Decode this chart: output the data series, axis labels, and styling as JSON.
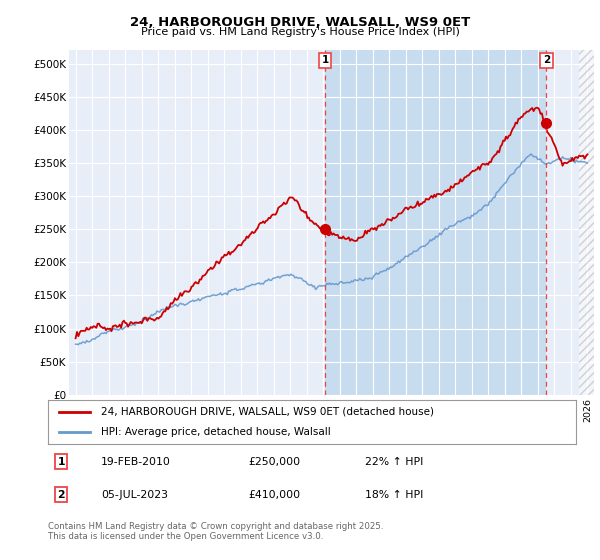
{
  "title": "24, HARBOROUGH DRIVE, WALSALL, WS9 0ET",
  "subtitle": "Price paid vs. HM Land Registry's House Price Index (HPI)",
  "legend_line1": "24, HARBOROUGH DRIVE, WALSALL, WS9 0ET (detached house)",
  "legend_line2": "HPI: Average price, detached house, Walsall",
  "footer": "Contains HM Land Registry data © Crown copyright and database right 2025.\nThis data is licensed under the Open Government Licence v3.0.",
  "annotation1": {
    "label": "1",
    "date": "19-FEB-2010",
    "price": "£250,000",
    "hpi": "22% ↑ HPI"
  },
  "annotation2": {
    "label": "2",
    "date": "05-JUL-2023",
    "price": "£410,000",
    "hpi": "18% ↑ HPI"
  },
  "red_color": "#cc0000",
  "blue_color": "#6699cc",
  "dashed_red": "#ee4444",
  "bg_color": "#dce8f5",
  "bg_color_left": "#e8eef8",
  "highlight_color": "#c8dcf0",
  "grid_color": "#ffffff",
  "ylim": [
    0,
    520000
  ],
  "yticks": [
    0,
    50000,
    100000,
    150000,
    200000,
    250000,
    300000,
    350000,
    400000,
    450000,
    500000
  ],
  "ytick_labels": [
    "£0",
    "£50K",
    "£100K",
    "£150K",
    "£200K",
    "£250K",
    "£300K",
    "£350K",
    "£400K",
    "£450K",
    "£500K"
  ],
  "vline1_x": 2010.12,
  "vline2_x": 2023.51,
  "marker1_y": 250000,
  "marker2_y": 410000,
  "xmin": 1994.6,
  "xmax": 2026.4
}
